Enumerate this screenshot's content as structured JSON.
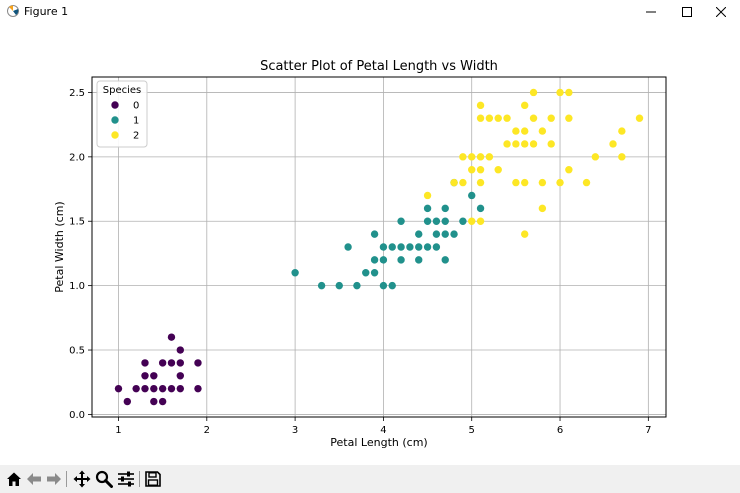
{
  "window": {
    "title": "Figure 1"
  },
  "toolbar": {
    "buttons": [
      {
        "name": "home-icon",
        "label": "Home"
      },
      {
        "name": "back-arrow-icon",
        "label": "Back"
      },
      {
        "name": "forward-arrow-icon",
        "label": "Forward"
      },
      {
        "name": "pan-icon",
        "label": "Pan"
      },
      {
        "name": "zoom-icon",
        "label": "Zoom"
      },
      {
        "name": "configure-subplots-icon",
        "label": "Configure subplots"
      },
      {
        "name": "save-icon",
        "label": "Save"
      }
    ]
  },
  "chart_data": {
    "type": "scatter",
    "title": "Scatter Plot of Petal Length vs Width",
    "xlabel": "Petal Length (cm)",
    "ylabel": "Petal Width (cm)",
    "xlim": [
      0.7,
      7.2
    ],
    "ylim": [
      -0.02,
      2.62
    ],
    "xticks": [
      1,
      2,
      3,
      4,
      5,
      6,
      7
    ],
    "yticks": [
      0.0,
      0.5,
      1.0,
      1.5,
      2.0,
      2.5
    ],
    "xtick_labels": [
      "1",
      "2",
      "3",
      "4",
      "5",
      "6",
      "7"
    ],
    "ytick_labels": [
      "0.0",
      "0.5",
      "1.0",
      "1.5",
      "2.0",
      "2.5"
    ],
    "grid": true,
    "legend": {
      "title": "Species",
      "placement": "upper-left"
    },
    "series": [
      {
        "name": "0",
        "color": "#440154",
        "points": [
          [
            1.0,
            0.2
          ],
          [
            1.1,
            0.1
          ],
          [
            1.2,
            0.2
          ],
          [
            1.3,
            0.2
          ],
          [
            1.3,
            0.3
          ],
          [
            1.3,
            0.4
          ],
          [
            1.4,
            0.1
          ],
          [
            1.4,
            0.2
          ],
          [
            1.4,
            0.3
          ],
          [
            1.5,
            0.1
          ],
          [
            1.5,
            0.2
          ],
          [
            1.5,
            0.4
          ],
          [
            1.6,
            0.2
          ],
          [
            1.6,
            0.4
          ],
          [
            1.6,
            0.6
          ],
          [
            1.7,
            0.2
          ],
          [
            1.7,
            0.3
          ],
          [
            1.7,
            0.4
          ],
          [
            1.7,
            0.5
          ],
          [
            1.9,
            0.2
          ],
          [
            1.9,
            0.4
          ]
        ]
      },
      {
        "name": "1",
        "color": "#21918c",
        "points": [
          [
            3.0,
            1.1
          ],
          [
            3.3,
            1.0
          ],
          [
            3.5,
            1.0
          ],
          [
            3.6,
            1.3
          ],
          [
            3.7,
            1.0
          ],
          [
            3.8,
            1.1
          ],
          [
            3.9,
            1.1
          ],
          [
            3.9,
            1.2
          ],
          [
            3.9,
            1.4
          ],
          [
            4.0,
            1.0
          ],
          [
            4.0,
            1.2
          ],
          [
            4.0,
            1.3
          ],
          [
            4.1,
            1.0
          ],
          [
            4.1,
            1.3
          ],
          [
            4.2,
            1.2
          ],
          [
            4.2,
            1.3
          ],
          [
            4.2,
            1.5
          ],
          [
            4.3,
            1.3
          ],
          [
            4.4,
            1.2
          ],
          [
            4.4,
            1.3
          ],
          [
            4.4,
            1.4
          ],
          [
            4.5,
            1.3
          ],
          [
            4.5,
            1.5
          ],
          [
            4.5,
            1.6
          ],
          [
            4.6,
            1.3
          ],
          [
            4.6,
            1.4
          ],
          [
            4.6,
            1.5
          ],
          [
            4.7,
            1.2
          ],
          [
            4.7,
            1.4
          ],
          [
            4.7,
            1.5
          ],
          [
            4.7,
            1.6
          ],
          [
            4.8,
            1.4
          ],
          [
            4.8,
            1.8
          ],
          [
            4.9,
            1.5
          ],
          [
            5.0,
            1.7
          ],
          [
            5.1,
            1.6
          ]
        ]
      },
      {
        "name": "2",
        "color": "#fde725",
        "points": [
          [
            4.5,
            1.7
          ],
          [
            4.8,
            1.8
          ],
          [
            4.9,
            1.8
          ],
          [
            4.9,
            2.0
          ],
          [
            5.0,
            1.5
          ],
          [
            5.0,
            1.9
          ],
          [
            5.0,
            2.0
          ],
          [
            5.1,
            1.5
          ],
          [
            5.1,
            1.8
          ],
          [
            5.1,
            1.9
          ],
          [
            5.1,
            2.0
          ],
          [
            5.1,
            2.3
          ],
          [
            5.1,
            2.4
          ],
          [
            5.2,
            2.0
          ],
          [
            5.2,
            2.3
          ],
          [
            5.3,
            1.9
          ],
          [
            5.3,
            2.3
          ],
          [
            5.4,
            2.1
          ],
          [
            5.4,
            2.3
          ],
          [
            5.5,
            1.8
          ],
          [
            5.5,
            2.1
          ],
          [
            5.5,
            2.2
          ],
          [
            5.6,
            1.4
          ],
          [
            5.6,
            1.8
          ],
          [
            5.6,
            2.1
          ],
          [
            5.6,
            2.2
          ],
          [
            5.6,
            2.4
          ],
          [
            5.7,
            2.1
          ],
          [
            5.7,
            2.3
          ],
          [
            5.7,
            2.5
          ],
          [
            5.8,
            1.6
          ],
          [
            5.8,
            1.8
          ],
          [
            5.8,
            2.2
          ],
          [
            5.9,
            2.1
          ],
          [
            5.9,
            2.3
          ],
          [
            6.0,
            1.8
          ],
          [
            6.0,
            2.5
          ],
          [
            6.1,
            1.9
          ],
          [
            6.1,
            2.3
          ],
          [
            6.1,
            2.5
          ],
          [
            6.3,
            1.8
          ],
          [
            6.4,
            2.0
          ],
          [
            6.6,
            2.1
          ],
          [
            6.7,
            2.0
          ],
          [
            6.7,
            2.2
          ],
          [
            6.9,
            2.3
          ]
        ]
      }
    ]
  }
}
